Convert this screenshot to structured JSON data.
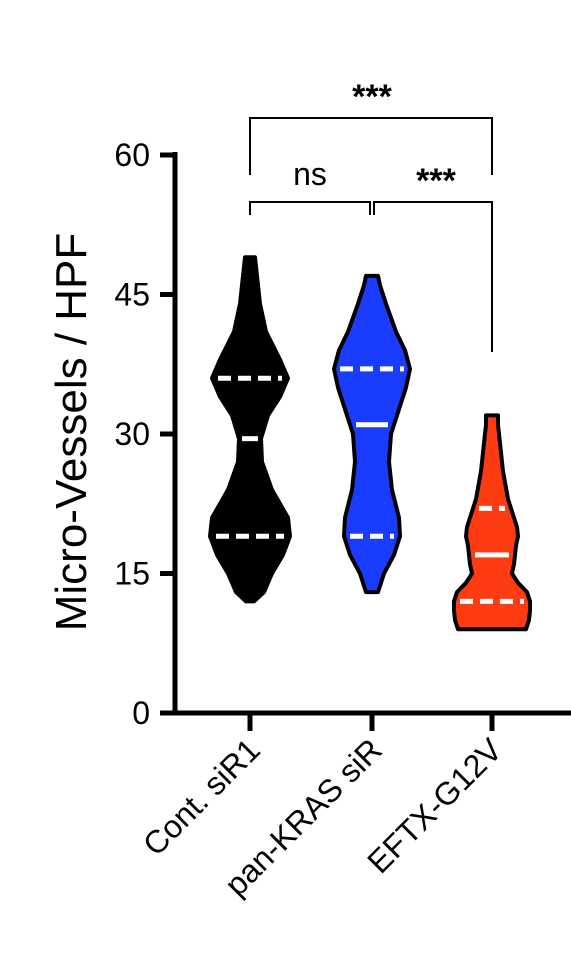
{
  "chart_data": {
    "type": "violin",
    "title": "",
    "xlabel": "",
    "ylabel": "Micro-Vessels / HPF",
    "ylim": [
      0,
      60
    ],
    "yticks": [
      "0",
      "15",
      "30",
      "45",
      "60"
    ],
    "categories": [
      "Cont. siR1",
      "pan-KRAS siR",
      "EFTX-G12V"
    ],
    "series": [
      {
        "category": "Cont. siR1",
        "color": "#000000",
        "line_color": "#ffffff",
        "min": 12,
        "max": 49,
        "q1": 19,
        "median": 29.5,
        "q3": 36
      },
      {
        "category": "pan-KRAS siR",
        "color": "#1a3cff",
        "line_color": "#ffffff",
        "min": 13,
        "max": 47,
        "q1": 19,
        "median": 31,
        "q3": 37
      },
      {
        "category": "EFTX-G12V",
        "color": "#ff3b12",
        "line_color": "#ffffff",
        "min": 9,
        "max": 32,
        "q1": 12,
        "median": 17,
        "q3": 22
      }
    ],
    "comparisons": [
      {
        "from": "Cont. siR1",
        "to": "pan-KRAS siR",
        "label": "ns"
      },
      {
        "from": "pan-KRAS siR",
        "to": "EFTX-G12V",
        "label": "***"
      },
      {
        "from": "Cont. siR1",
        "to": "EFTX-G12V",
        "label": "***"
      }
    ]
  }
}
